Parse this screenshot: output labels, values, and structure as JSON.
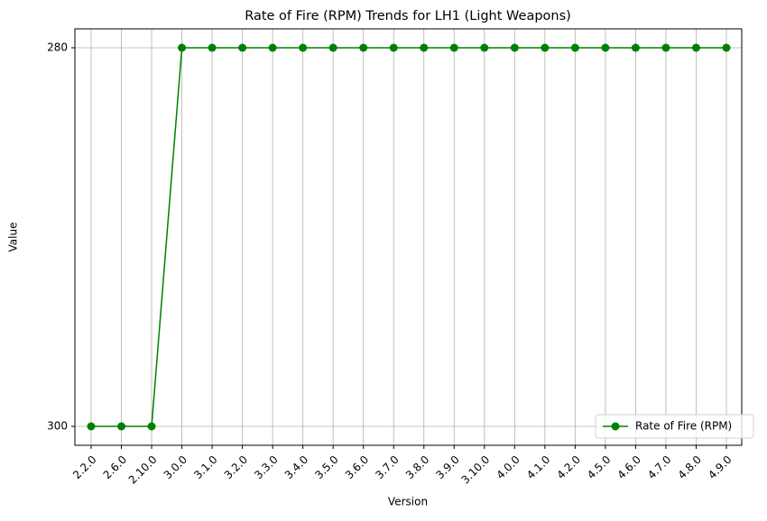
{
  "chart_data": {
    "type": "line",
    "title": "Rate of Fire (RPM) Trends for LH1 (Light Weapons)",
    "x_label": "Version",
    "y_label": "Value",
    "categories": [
      "2.2.0",
      "2.6.0",
      "2.10.0",
      "3.0.0",
      "3.1.0",
      "3.2.0",
      "3.3.0",
      "3.4.0",
      "3.5.0",
      "3.6.0",
      "3.7.0",
      "3.8.0",
      "3.9.0",
      "3.10.0",
      "4.0.0",
      "4.1.0",
      "4.2.0",
      "4.5.0",
      "4.6.0",
      "4.7.0",
      "4.8.0",
      "4.9.0"
    ],
    "series": [
      {
        "name": "Rate of Fire (RPM)",
        "color": "#008000",
        "values": [
          300,
          300,
          300,
          280,
          280,
          280,
          280,
          280,
          280,
          280,
          280,
          280,
          280,
          280,
          280,
          280,
          280,
          280,
          280,
          280,
          280,
          280
        ]
      }
    ],
    "ylim": [
      301,
      279
    ],
    "yticks": [
      300,
      280
    ],
    "grid": true,
    "legend": "lower right"
  }
}
